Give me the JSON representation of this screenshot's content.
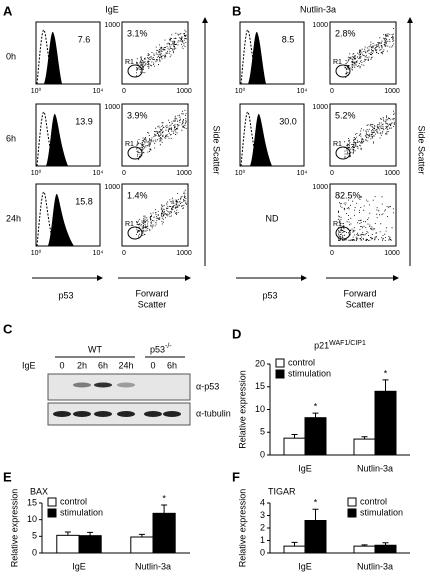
{
  "panel_A": {
    "letter": "A",
    "title": "IgE",
    "rows": [
      {
        "time": "0h",
        "histogram_value": "7.6",
        "scatter_value": "3.1%",
        "gate": "R1"
      },
      {
        "time": "6h",
        "histogram_value": "13.9",
        "scatter_value": "3.9%",
        "gate": "R1"
      },
      {
        "time": "24h",
        "histogram_value": "15.8",
        "scatter_value": "1.4%",
        "gate": "R1"
      }
    ],
    "histogram_ticks": [
      "10⁰",
      "10⁴"
    ],
    "scatter_x_ticks": [
      "0",
      "1000"
    ],
    "scatter_y_tick": "1000",
    "histogram_label": "p53",
    "scatter_label": [
      "Forward",
      "Scatter"
    ],
    "side_label": "Side Scatter"
  },
  "panel_B": {
    "letter": "B",
    "title": "Nutlin-3a",
    "rows": [
      {
        "histogram_value": "8.5",
        "scatter_value": "2.8%",
        "gate": "R1"
      },
      {
        "histogram_value": "30.0",
        "scatter_value": "5.2%",
        "gate": "R1"
      },
      {
        "histogram_value": "ND",
        "scatter_value": "82.5%",
        "gate": "R1"
      }
    ],
    "histogram_ticks": [
      "10⁰",
      "10⁴"
    ],
    "scatter_x_ticks": [
      "0",
      "1000"
    ],
    "scatter_y_tick": "1000",
    "histogram_label": "p53",
    "scatter_label": [
      "Forward",
      "Scatter"
    ],
    "side_label": "Side Scatter"
  },
  "panel_C": {
    "letter": "C",
    "stimulus": "IgE",
    "groups": [
      "WT",
      "p53"
    ],
    "knockout_superscript": "-/-",
    "lanes": [
      "0",
      "2h",
      "6h",
      "24h",
      "0",
      "6h"
    ],
    "antibodies": [
      "α-p53",
      "α-tubulin"
    ]
  },
  "chart_data": [
    {
      "type": "bar",
      "panel": "D",
      "title": "p21",
      "title_superscript": "WAF1/CIP1",
      "y_label": "Relative expression",
      "categories": [
        "IgE",
        "Nutlin-3a"
      ],
      "ylim": [
        0,
        20
      ],
      "yticks": [
        0,
        5,
        10,
        15,
        20
      ],
      "legend": "upper left",
      "series": [
        {
          "name": "control",
          "color": "#ffffff",
          "values": [
            3.7,
            3.5
          ],
          "errors": [
            0.8,
            0.5
          ],
          "significance": [
            null,
            null
          ]
        },
        {
          "name": "stimulation",
          "color": "#000000",
          "values": [
            8.2,
            14
          ],
          "errors": [
            1,
            2.5
          ],
          "significance": [
            "*",
            "*"
          ]
        }
      ]
    },
    {
      "type": "bar",
      "panel": "E",
      "title": "BAX",
      "y_label": "Relative expression",
      "categories": [
        "IgE",
        "Nutlin-3a"
      ],
      "ylim": [
        0,
        15
      ],
      "yticks": [
        0,
        5,
        10,
        15
      ],
      "legend": "upper left",
      "series": [
        {
          "name": "control",
          "color": "#ffffff",
          "values": [
            5.3,
            4.8
          ],
          "errors": [
            1,
            0.8
          ],
          "significance": [
            null,
            null
          ]
        },
        {
          "name": "stimulation",
          "color": "#000000",
          "values": [
            5.2,
            11.9
          ],
          "errors": [
            1,
            2.5
          ],
          "significance": [
            null,
            "*"
          ]
        }
      ]
    },
    {
      "type": "bar",
      "panel": "F",
      "title": "TIGAR",
      "y_label": "Relative expression",
      "categories": [
        "IgE",
        "Nutlin-3a"
      ],
      "ylim": [
        0,
        4
      ],
      "yticks": [
        0,
        1,
        2,
        3,
        4
      ],
      "legend": "upper right",
      "series": [
        {
          "name": "control",
          "color": "#ffffff",
          "values": [
            0.55,
            0.55
          ],
          "errors": [
            0.3,
            0.1
          ],
          "significance": [
            null,
            null
          ]
        },
        {
          "name": "stimulation",
          "color": "#000000",
          "values": [
            2.6,
            0.62
          ],
          "errors": [
            0.9,
            0.2
          ],
          "significance": [
            "*",
            null
          ]
        }
      ]
    }
  ]
}
